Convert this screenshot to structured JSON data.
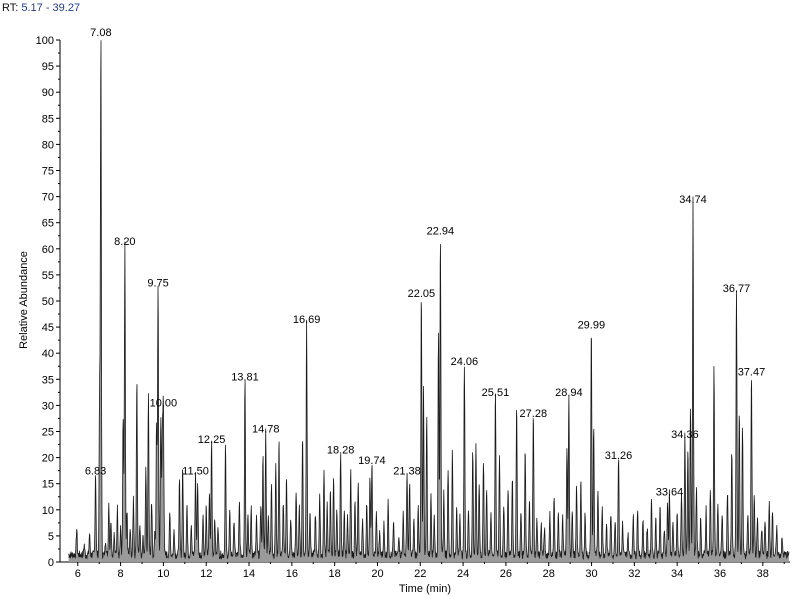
{
  "header": {
    "prefix": "RT: ",
    "range": "5.17 - 39.27"
  },
  "chart_data": {
    "type": "line",
    "title": "",
    "xlabel": "Time (min)",
    "ylabel": "Relative Abundance",
    "xlim": [
      5.17,
      39.27
    ],
    "ylim": [
      0,
      100
    ],
    "xticks": [
      6,
      8,
      10,
      12,
      14,
      16,
      18,
      20,
      22,
      24,
      26,
      28,
      30,
      32,
      34,
      36,
      38
    ],
    "yticks": [
      0,
      5,
      10,
      15,
      20,
      25,
      30,
      35,
      40,
      45,
      50,
      55,
      60,
      65,
      70,
      75,
      80,
      85,
      90,
      95,
      100
    ],
    "labeled_peaks": [
      {
        "rt": 6.83,
        "label": "6.83",
        "abundance": 16
      },
      {
        "rt": 7.08,
        "label": "7.08",
        "abundance": 100
      },
      {
        "rt": 8.2,
        "label": "8.20",
        "abundance": 60
      },
      {
        "rt": 9.75,
        "label": "9.75",
        "abundance": 52
      },
      {
        "rt": 10.0,
        "label": "10.00",
        "abundance": 29
      },
      {
        "rt": 11.5,
        "label": "11.50",
        "abundance": 16
      },
      {
        "rt": 12.25,
        "label": "12.25",
        "abundance": 22
      },
      {
        "rt": 13.81,
        "label": "13.81",
        "abundance": 34
      },
      {
        "rt": 14.78,
        "label": "14.78",
        "abundance": 24
      },
      {
        "rt": 16.69,
        "label": "16.69",
        "abundance": 45
      },
      {
        "rt": 18.28,
        "label": "18.28",
        "abundance": 20
      },
      {
        "rt": 19.74,
        "label": "19.74",
        "abundance": 18
      },
      {
        "rt": 21.38,
        "label": "21.38",
        "abundance": 16
      },
      {
        "rt": 22.05,
        "label": "22.05",
        "abundance": 50
      },
      {
        "rt": 22.94,
        "label": "22.94",
        "abundance": 62
      },
      {
        "rt": 24.06,
        "label": "24.06",
        "abundance": 37
      },
      {
        "rt": 25.51,
        "label": "25.51",
        "abundance": 31
      },
      {
        "rt": 27.28,
        "label": "27.28",
        "abundance": 27
      },
      {
        "rt": 28.94,
        "label": "28.94",
        "abundance": 31
      },
      {
        "rt": 29.99,
        "label": "29.99",
        "abundance": 44
      },
      {
        "rt": 31.26,
        "label": "31.26",
        "abundance": 19
      },
      {
        "rt": 33.64,
        "label": "33.64",
        "abundance": 12
      },
      {
        "rt": 34.36,
        "label": "34.36",
        "abundance": 23
      },
      {
        "rt": 34.74,
        "label": "34.74",
        "abundance": 68
      },
      {
        "rt": 36.77,
        "label": "36.77",
        "abundance": 51
      },
      {
        "rt": 37.47,
        "label": "37.47",
        "abundance": 35
      }
    ],
    "unlabeled_peaks": [
      [
        5.95,
        5
      ],
      [
        6.3,
        2
      ],
      [
        6.55,
        4
      ],
      [
        7.02,
        31
      ],
      [
        7.3,
        3
      ],
      [
        7.45,
        10
      ],
      [
        7.55,
        7
      ],
      [
        7.7,
        4
      ],
      [
        7.85,
        9
      ],
      [
        8.0,
        5
      ],
      [
        8.12,
        26
      ],
      [
        8.3,
        8
      ],
      [
        8.45,
        5
      ],
      [
        8.6,
        11
      ],
      [
        8.76,
        34
      ],
      [
        8.9,
        6
      ],
      [
        9.05,
        4
      ],
      [
        9.18,
        17
      ],
      [
        9.3,
        31
      ],
      [
        9.45,
        10
      ],
      [
        9.6,
        4
      ],
      [
        9.68,
        25
      ],
      [
        9.88,
        27
      ],
      [
        9.95,
        23
      ],
      [
        10.3,
        8
      ],
      [
        10.5,
        5
      ],
      [
        10.75,
        14
      ],
      [
        10.9,
        17
      ],
      [
        11.1,
        10
      ],
      [
        11.3,
        6
      ],
      [
        11.6,
        14
      ],
      [
        11.85,
        8
      ],
      [
        12.0,
        9
      ],
      [
        12.15,
        12
      ],
      [
        12.4,
        7
      ],
      [
        12.55,
        6
      ],
      [
        12.9,
        21
      ],
      [
        13.1,
        8
      ],
      [
        13.3,
        7
      ],
      [
        13.55,
        10
      ],
      [
        13.95,
        8
      ],
      [
        14.1,
        9
      ],
      [
        14.35,
        7
      ],
      [
        14.55,
        10
      ],
      [
        14.65,
        19
      ],
      [
        14.9,
        8
      ],
      [
        15.05,
        14
      ],
      [
        15.25,
        17
      ],
      [
        15.4,
        22
      ],
      [
        15.6,
        10
      ],
      [
        15.75,
        15
      ],
      [
        15.95,
        7
      ],
      [
        16.2,
        12
      ],
      [
        16.35,
        9
      ],
      [
        16.5,
        23
      ],
      [
        16.85,
        9
      ],
      [
        17.1,
        8
      ],
      [
        17.3,
        12
      ],
      [
        17.5,
        16
      ],
      [
        17.65,
        10
      ],
      [
        17.8,
        12
      ],
      [
        17.95,
        15
      ],
      [
        18.1,
        8
      ],
      [
        18.45,
        9
      ],
      [
        18.6,
        7
      ],
      [
        18.75,
        16
      ],
      [
        18.95,
        10
      ],
      [
        19.1,
        14
      ],
      [
        19.3,
        7
      ],
      [
        19.5,
        10
      ],
      [
        19.65,
        15
      ],
      [
        19.95,
        8
      ],
      [
        20.1,
        4
      ],
      [
        20.3,
        6
      ],
      [
        20.5,
        10
      ],
      [
        20.75,
        6
      ],
      [
        21.0,
        4
      ],
      [
        21.2,
        8
      ],
      [
        21.5,
        14
      ],
      [
        21.7,
        7
      ],
      [
        21.9,
        9
      ],
      [
        22.15,
        32
      ],
      [
        22.3,
        27
      ],
      [
        22.5,
        12
      ],
      [
        22.65,
        8
      ],
      [
        22.85,
        43
      ],
      [
        23.1,
        12
      ],
      [
        23.3,
        17
      ],
      [
        23.5,
        20
      ],
      [
        23.7,
        9
      ],
      [
        23.85,
        8
      ],
      [
        24.25,
        9
      ],
      [
        24.45,
        20
      ],
      [
        24.6,
        21
      ],
      [
        24.75,
        14
      ],
      [
        24.95,
        18
      ],
      [
        25.1,
        13
      ],
      [
        25.3,
        8
      ],
      [
        25.7,
        19
      ],
      [
        25.9,
        10
      ],
      [
        26.1,
        13
      ],
      [
        26.3,
        15
      ],
      [
        26.5,
        29
      ],
      [
        26.7,
        9
      ],
      [
        26.9,
        20
      ],
      [
        27.1,
        10
      ],
      [
        27.45,
        7
      ],
      [
        27.65,
        6
      ],
      [
        27.8,
        5
      ],
      [
        28.05,
        8
      ],
      [
        28.25,
        11
      ],
      [
        28.45,
        8
      ],
      [
        28.65,
        7
      ],
      [
        28.85,
        21
      ],
      [
        29.1,
        9
      ],
      [
        29.3,
        13
      ],
      [
        29.5,
        14
      ],
      [
        29.7,
        8
      ],
      [
        30.1,
        25
      ],
      [
        30.3,
        12
      ],
      [
        30.5,
        9
      ],
      [
        30.7,
        6
      ],
      [
        30.9,
        8
      ],
      [
        31.1,
        7
      ],
      [
        31.45,
        6
      ],
      [
        31.7,
        4
      ],
      [
        31.95,
        8
      ],
      [
        32.15,
        9
      ],
      [
        32.4,
        7
      ],
      [
        32.6,
        5
      ],
      [
        32.8,
        11
      ],
      [
        33.0,
        7
      ],
      [
        33.2,
        9
      ],
      [
        33.4,
        5
      ],
      [
        33.55,
        10
      ],
      [
        33.8,
        6
      ],
      [
        34.0,
        8
      ],
      [
        34.2,
        12
      ],
      [
        34.5,
        20
      ],
      [
        34.62,
        29
      ],
      [
        34.9,
        13
      ],
      [
        35.1,
        7
      ],
      [
        35.35,
        9
      ],
      [
        35.55,
        12
      ],
      [
        35.72,
        36
      ],
      [
        35.9,
        10
      ],
      [
        36.1,
        8
      ],
      [
        36.35,
        12
      ],
      [
        36.55,
        20
      ],
      [
        36.9,
        28
      ],
      [
        37.05,
        25
      ],
      [
        37.3,
        8
      ],
      [
        37.6,
        12
      ],
      [
        37.75,
        7
      ],
      [
        37.95,
        5
      ],
      [
        38.1,
        7
      ],
      [
        38.3,
        10
      ],
      [
        38.45,
        9
      ],
      [
        38.65,
        5
      ],
      [
        38.9,
        3
      ]
    ]
  }
}
